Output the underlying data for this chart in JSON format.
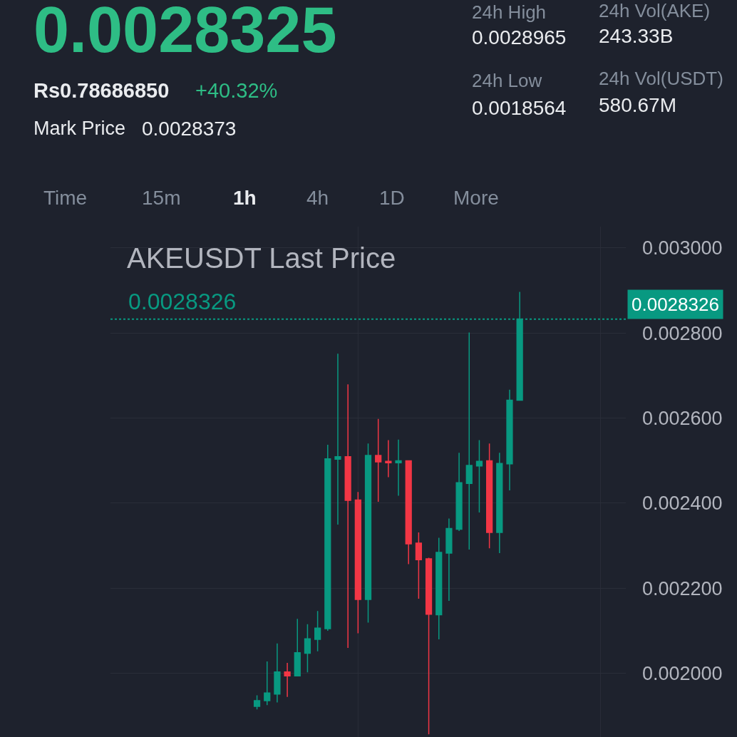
{
  "chart_data": {
    "type": "candlestick",
    "title": "AKEUSDT Last Price",
    "subtitle": "0.0028326",
    "annotations": [
      "0.0028325",
      "Rs0.78686850",
      "+40.32%",
      "Mark Price",
      "0.0028373",
      "24h High",
      "0.0028965",
      "24h Low",
      "0.0018564",
      "24h Vol(AKE)",
      "243.33B",
      "24h Vol(USDT)",
      "580.67M",
      "Time",
      "15m",
      "1h",
      "4h",
      "1D",
      "More"
    ],
    "categories": [
      null,
      null,
      null,
      null,
      null,
      null,
      null,
      null,
      null,
      null,
      null,
      null,
      null,
      null,
      null,
      null,
      null,
      null,
      null,
      null,
      null,
      null,
      null,
      null,
      null,
      null,
      null,
      null,
      null,
      null,
      null,
      null,
      null,
      null,
      null,
      null,
      null,
      null,
      null,
      null,
      null,
      null,
      null,
      null,
      null,
      null,
      null,
      null,
      null,
      null,
      null
    ],
    "ohlc": [
      null,
      null,
      null,
      null,
      null,
      null,
      null,
      null,
      null,
      null,
      null,
      null,
      null,
      null,
      [
        0.001922,
        0.001948,
        0.001915,
        0.0019355
      ],
      [
        0.0019355,
        0.0020277,
        0.001925,
        0.0019537
      ],
      [
        0.0019511,
        0.0020698,
        0.0019313,
        0.0020031
      ],
      [
        0.0020031,
        0.0020241,
        0.0019444,
        0.0019938
      ],
      [
        0.0019938,
        0.0021277,
        0.0019928,
        0.002048
      ],
      [
        0.0020469,
        0.0021152,
        0.0020022,
        0.0020808
      ],
      [
        0.0020797,
        0.0021464,
        0.0020516,
        0.0021058
      ],
      [
        0.0021047,
        0.002537,
        0.0020997,
        0.0025042
      ],
      [
        0.0025031,
        0.0027511,
        0.0023495,
        0.0025089
      ],
      [
        0.0025089,
        0.0026792,
        0.0020594,
        0.0024063
      ],
      [
        0.0024073,
        0.0024261,
        0.0020938,
        0.0021734
      ],
      [
        0.0021734,
        0.0025401,
        0.0021188,
        0.002512
      ],
      [
        0.002512,
        0.002598,
        0.0024031,
        0.0024969
      ],
      [
        0.002498,
        0.002548,
        0.0024609,
        0.0024948
      ],
      [
        0.0024948,
        0.0025495,
        0.0024172,
        0.0024995
      ],
      [
        0.0024995,
        0.0024995,
        0.0022563,
        0.0023042
      ],
      [
        0.0023058,
        0.0023308,
        0.002175,
        0.0022667
      ],
      [
        0.0022688,
        0.0022714,
        0.0018564,
        0.0021386
      ],
      [
        0.0021375,
        0.0023183,
        0.0020797,
        0.0022839
      ],
      [
        0.0022823,
        0.0023636,
        0.0021703,
        0.0023402
      ],
      [
        0.0023386,
        0.0025183,
        0.0023344,
        0.002448
      ],
      [
        0.0024464,
        0.0028011,
        0.0022906,
        0.0024886
      ],
      [
        0.0024875,
        0.002548,
        0.0023781,
        0.002498
      ],
      [
        0.0024995,
        0.0025401,
        0.0022938,
        0.0023308
      ],
      [
        0.0023308,
        0.0025183,
        0.0022823,
        0.0024933
      ],
      [
        0.0024922,
        0.0026667,
        0.0024297,
        0.0026417
      ],
      [
        0.0026417,
        0.0028965,
        0.0026417,
        0.0028326
      ],
      null,
      null,
      null,
      null,
      null,
      null,
      null,
      null,
      null,
      null
    ],
    "colors": [
      null,
      null,
      null,
      null,
      null,
      null,
      null,
      null,
      null,
      null,
      null,
      null,
      null,
      null,
      "#089981",
      "#089981",
      "#089981",
      "#f23645",
      "#089981",
      "#089981",
      "#089981",
      "#089981",
      "#089981",
      "#f23645",
      "#f23645",
      "#089981",
      "#f23645",
      "#f23645",
      "#089981",
      "#f23645",
      "#f23645",
      "#f23645",
      "#089981",
      "#089981",
      "#089981",
      "#089981",
      "#089981",
      "#f23645",
      "#089981",
      "#089981",
      "#089981",
      null,
      null,
      null,
      null,
      null,
      null,
      null,
      null,
      null,
      null
    ],
    "ylim": [
      0.00185,
      0.00305
    ],
    "yticks": [
      {
        "value": 0.002,
        "label": "0.002000"
      },
      {
        "value": 0.0022,
        "label": "0.002200"
      },
      {
        "value": 0.0024,
        "label": "0.002400"
      },
      {
        "value": 0.0026,
        "label": "0.002600"
      },
      {
        "value": 0.0028,
        "label": "0.002800"
      },
      {
        "value": 0.003,
        "label": "0.003000"
      }
    ],
    "ref_lines": [
      {
        "axis": "y",
        "value": 0.0028326,
        "label": "0.0028326",
        "color": "#089981",
        "line_style": "dotted"
      }
    ],
    "grid": true,
    "tick_labels": "y"
  }
}
